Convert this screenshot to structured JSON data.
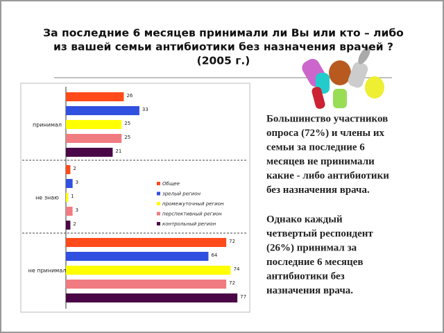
{
  "slide": {
    "title_lines": [
      "За последние 6 месяцев принимали ли Вы или кто – либо",
      "из вашей семьи антибиотики без назначения врачей ?",
      "(2005 г.)"
    ]
  },
  "chart_data": {
    "type": "bar",
    "orientation": "horizontal",
    "categories": [
      "принимал",
      "не знаю",
      "не принимал"
    ],
    "series": [
      {
        "name": "Общее",
        "color": "#ff4a1a",
        "values": [
          26,
          2,
          72
        ]
      },
      {
        "name": "зрелый регион",
        "color": "#3050e0",
        "values": [
          33,
          3,
          64
        ]
      },
      {
        "name": "промежуточный регион",
        "color": "#ffff00",
        "values": [
          25,
          1,
          74
        ]
      },
      {
        "name": "перспективный регион",
        "color": "#f07b80",
        "values": [
          25,
          3,
          72
        ]
      },
      {
        "name": "контрольный регион",
        "color": "#4a0646",
        "values": [
          21,
          2,
          77
        ]
      }
    ]
  },
  "text": {
    "paragraphs": [
      [
        "Большинство участников",
        "опроса (72%) и члены их",
        "семьи за последние 6",
        "месяцев не принимали",
        "какие - либо антибиотики",
        "без назначения врача."
      ],
      [
        "Однако каждый",
        "четвертый респондент",
        "(26%) принимал за",
        "последние 6 месяцев",
        "антибиотики без",
        "назначения врача."
      ]
    ]
  }
}
